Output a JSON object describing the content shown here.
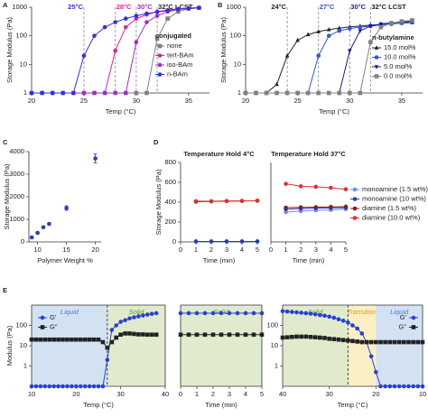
{
  "chart_data": [
    {
      "type": "line",
      "panel_label": "A",
      "log_y": true,
      "xlabel": "Temp (°C)",
      "ylabel": "Storage Modulus (Pa)",
      "xlim": [
        20,
        37
      ],
      "ylim": [
        1,
        1000
      ],
      "xticks": [
        20,
        25,
        30,
        35
      ],
      "yticks": [
        1,
        10,
        100,
        1000
      ],
      "legend": "right",
      "legend_title": "conjugated",
      "annotations": [
        {
          "x": 25,
          "label": "25°C",
          "color": "#3030e0"
        },
        {
          "x": 28,
          "label": "28°C",
          "color": "#e0209a"
        },
        {
          "x": 30,
          "label": "30°C",
          "color": "#9b2fc9"
        },
        {
          "x": 32,
          "label": "32°C LCST",
          "color": "#222222"
        }
      ],
      "x": [
        20,
        21,
        22,
        23,
        24,
        25,
        26,
        27,
        28,
        29,
        30,
        31,
        32,
        33,
        34,
        35,
        36
      ],
      "series": [
        {
          "name": "none",
          "color": "#808080",
          "marker": "square",
          "values": [
            1,
            1,
            1,
            1,
            1,
            1,
            1,
            1,
            1,
            1,
            1,
            1,
            80,
            400,
            700,
            900,
            950
          ]
        },
        {
          "name": "tert-BAm",
          "color": "#e0209a",
          "marker": "circle",
          "values": [
            1,
            1,
            1,
            1,
            1,
            1,
            1,
            1,
            30,
            200,
            400,
            550,
            700,
            800,
            880,
            930,
            960
          ]
        },
        {
          "name": "iso-BAm",
          "color": "#9b2fc9",
          "marker": "circle",
          "values": [
            1,
            1,
            1,
            1,
            1,
            1,
            1,
            1,
            1,
            1,
            60,
            300,
            500,
            700,
            830,
            920,
            960
          ]
        },
        {
          "name": "n-BAm",
          "color": "#3030e0",
          "marker": "circle",
          "values": [
            1,
            1,
            1,
            1,
            1,
            20,
            100,
            200,
            300,
            400,
            500,
            600,
            680,
            760,
            840,
            900,
            950
          ]
        }
      ]
    },
    {
      "type": "line",
      "panel_label": "B",
      "log_y": true,
      "xlabel": "Temp (°C)",
      "ylabel": "Storage Modulus (Pa)",
      "xlim": [
        20,
        37
      ],
      "ylim": [
        1,
        1000
      ],
      "xticks": [
        20,
        25,
        30,
        35
      ],
      "yticks": [
        1,
        10,
        100,
        1000
      ],
      "legend": "right",
      "legend_title": "n-butylamine",
      "annotations": [
        {
          "x": 24,
          "label": "24°C",
          "color": "#222222"
        },
        {
          "x": 27,
          "label": "27°C",
          "color": "#2f55e0"
        },
        {
          "x": 30,
          "label": "30°C",
          "color": "#1a1a9a"
        },
        {
          "x": 32,
          "label": "32°C LCST",
          "color": "#222222"
        }
      ],
      "x": [
        20,
        21,
        22,
        23,
        24,
        25,
        26,
        27,
        28,
        29,
        30,
        31,
        32,
        33,
        34,
        35,
        36
      ],
      "series": [
        {
          "name": "15.0 mol%",
          "color": "#222222",
          "marker": "triangle-up",
          "values": [
            1,
            1,
            1,
            2,
            20,
            70,
            110,
            140,
            165,
            185,
            205,
            220,
            235,
            250,
            262,
            275,
            290
          ]
        },
        {
          "name": "10.0 mol%",
          "color": "#2f55e0",
          "marker": "circle",
          "values": [
            1,
            1,
            1,
            1,
            1,
            1,
            1,
            20,
            100,
            150,
            180,
            200,
            220,
            240,
            260,
            280,
            300
          ]
        },
        {
          "name": "5.0 mol%",
          "color": "#1a1a9a",
          "marker": "triangle-down",
          "values": [
            1,
            1,
            1,
            1,
            1,
            1,
            1,
            1,
            1,
            1,
            30,
            150,
            220,
            260,
            285,
            305,
            320
          ]
        },
        {
          "name": "0.0 mol%",
          "color": "#808080",
          "marker": "square",
          "values": [
            1,
            1,
            1,
            1,
            1,
            1,
            1,
            1,
            1,
            1,
            1,
            1,
            60,
            200,
            280,
            320,
            350
          ]
        }
      ]
    },
    {
      "type": "scatter",
      "panel_label": "C",
      "xlabel": "Polymer Weight %",
      "ylabel": "Storage Modulus (Pa)",
      "xlim": [
        8.5,
        21
      ],
      "ylim": [
        0,
        4000
      ],
      "xticks": [
        10,
        15,
        20
      ],
      "yticks": [
        0,
        1000,
        2000,
        3000,
        4000
      ],
      "x": [
        9,
        10,
        11,
        12,
        15,
        20
      ],
      "series": [
        {
          "color": "#2c3cbf",
          "marker": "circle",
          "values": [
            200,
            400,
            650,
            800,
            1500,
            3700
          ],
          "errors": [
            40,
            40,
            40,
            50,
            100,
            200
          ]
        }
      ]
    },
    {
      "type": "line",
      "panel_label": "D",
      "title": "Temperature Hold 4°C",
      "xlabel": "Time (min)",
      "ylabel": "Storage Modulus (Pa)",
      "xlim": [
        0,
        5
      ],
      "ylim": [
        0,
        800
      ],
      "xticks": [
        0,
        1,
        2,
        3,
        4,
        5
      ],
      "yticks": [
        0,
        200,
        400,
        600,
        800
      ],
      "x": [
        1,
        2,
        3,
        4,
        5
      ],
      "series": [
        {
          "color": "#6a8ef0",
          "marker": "circle",
          "values": [
            5,
            5,
            5,
            5,
            5
          ]
        },
        {
          "color": "#1f3fd0",
          "marker": "circle",
          "values": [
            5,
            5,
            5,
            5,
            5
          ]
        },
        {
          "color": "#8b1a1a",
          "marker": "circle",
          "values": [
            405,
            408,
            410,
            412,
            415
          ]
        },
        {
          "color": "#e03030",
          "marker": "circle",
          "values": [
            410,
            410,
            412,
            413,
            415
          ]
        }
      ]
    },
    {
      "type": "line",
      "title": "Temperature Hold 37°C",
      "xlabel": "Time (min)",
      "xlim": [
        0,
        5
      ],
      "ylim": [
        0,
        800
      ],
      "xticks": [
        0,
        1,
        2,
        3,
        4,
        5
      ],
      "legend": "outside right",
      "x": [
        1,
        2,
        3,
        4,
        5
      ],
      "series": [
        {
          "name": "monoamine (1.5 wt%)",
          "color": "#6a8ef0",
          "marker": "circle",
          "values": [
            300,
            310,
            318,
            322,
            330
          ]
        },
        {
          "name": "monoamine (10 wt%)",
          "color": "#1f3fd0",
          "marker": "circle",
          "values": [
            330,
            335,
            340,
            342,
            345
          ]
        },
        {
          "name": "diamine (1.5 wt%)",
          "color": "#8b1a1a",
          "marker": "circle",
          "values": [
            345,
            348,
            350,
            352,
            355
          ]
        },
        {
          "name": "diamine (10.0 wt%)",
          "color": "#e03030",
          "marker": "circle",
          "values": [
            585,
            560,
            555,
            545,
            530
          ]
        }
      ]
    },
    {
      "type": "line",
      "panel_label": "E",
      "log_y": true,
      "xlabel": "Temp (°C)",
      "ylabel": "Modulus (Pa)",
      "xlim": [
        10,
        40
      ],
      "ylim": [
        0.1,
        1000
      ],
      "xticks": [
        10,
        20,
        30,
        40
      ],
      "yticks": [
        1,
        10,
        100
      ],
      "legend": "upper left",
      "regions": [
        {
          "from": 10,
          "to": 27,
          "label": "Liquid",
          "color": "#d3e2f3",
          "text_color": "#4a7ac8"
        },
        {
          "from": 27,
          "to": 40,
          "label": "Solid",
          "color": "#e0ebcd",
          "text_color": "#5a9a2a"
        }
      ],
      "annotations": [
        {
          "x": 27,
          "color": "#222222"
        }
      ],
      "x": [
        10,
        11,
        12,
        13,
        14,
        15,
        16,
        17,
        18,
        19,
        20,
        21,
        22,
        23,
        24,
        25,
        26,
        27,
        28,
        29,
        30,
        31,
        32,
        33,
        34,
        35,
        36,
        37,
        38
      ],
      "series": [
        {
          "name": "G'",
          "color": "#2a3fd8",
          "marker": "circle",
          "values": [
            0.1,
            0.1,
            0.1,
            0.1,
            0.1,
            0.1,
            0.1,
            0.1,
            0.1,
            0.1,
            0.1,
            0.1,
            0.1,
            0.1,
            0.1,
            0.1,
            0.1,
            2,
            60,
            100,
            150,
            180,
            220,
            250,
            280,
            310,
            340,
            370,
            400
          ]
        },
        {
          "name": "G\"",
          "color": "#222222",
          "marker": "square",
          "values": [
            20,
            20,
            20,
            20,
            20,
            20,
            20,
            20,
            20,
            20,
            20,
            20,
            20,
            20,
            20,
            20,
            15,
            8,
            15,
            25,
            35,
            40,
            40,
            38,
            36,
            36,
            35,
            35,
            35
          ]
        }
      ]
    },
    {
      "type": "line",
      "log_y": true,
      "xlabel": "Time (min)",
      "xlim": [
        0,
        5
      ],
      "ylim": [
        0.1,
        1000
      ],
      "xticks": [
        0,
        1,
        2,
        3,
        4,
        5
      ],
      "regions": [
        {
          "from": 0,
          "to": 5,
          "label": "Solid",
          "color": "#e0ebcd",
          "text_color": "#5a9a2a"
        }
      ],
      "x": [
        0,
        0.5,
        1,
        1.5,
        2,
        2.5,
        3,
        3.5,
        4,
        4.5,
        5
      ],
      "series": [
        {
          "color": "#2a3fd8",
          "marker": "circle",
          "values": [
            400,
            400,
            400,
            400,
            400,
            400,
            400,
            400,
            400,
            400,
            400
          ]
        },
        {
          "color": "#222222",
          "marker": "square",
          "values": [
            35,
            35,
            35,
            35,
            35,
            35,
            35,
            35,
            35,
            35,
            35
          ]
        }
      ]
    },
    {
      "type": "line",
      "log_y": true,
      "xlabel": "Temp (°C)",
      "xlim": [
        40,
        10
      ],
      "ylim": [
        0.1,
        1000
      ],
      "xticks": [
        40,
        30,
        20,
        10
      ],
      "yticks": [
        1,
        10,
        100
      ],
      "legend": "upper right",
      "regions": [
        {
          "from": 40,
          "to": 26,
          "label": "Solid",
          "color": "#e0ebcd",
          "text_color": "#5a9a2a"
        },
        {
          "from": 26,
          "to": 20,
          "label": "Transition",
          "color": "#fbf0c4",
          "text_color": "#d89a20"
        },
        {
          "from": 20,
          "to": 10,
          "label": "Liquid",
          "color": "#d3e2f3",
          "text_color": "#4a7ac8"
        }
      ],
      "annotations": [
        {
          "x": 26,
          "color": "#222222"
        }
      ],
      "x": [
        40,
        39,
        38,
        37,
        36,
        35,
        34,
        33,
        32,
        31,
        30,
        29,
        28,
        27,
        26,
        25,
        24,
        23,
        22,
        21,
        20,
        19,
        18,
        17,
        16,
        15,
        14,
        13,
        12,
        11,
        10
      ],
      "series": [
        {
          "name": "G'",
          "color": "#2a3fd8",
          "marker": "circle",
          "values": [
            500,
            480,
            460,
            440,
            420,
            400,
            380,
            350,
            320,
            300,
            270,
            240,
            200,
            170,
            140,
            100,
            70,
            40,
            15,
            3,
            0.5,
            0.1,
            0.1,
            0.1,
            0.1,
            0.1,
            0.1,
            0.1,
            0.1,
            0.1,
            0.1
          ]
        },
        {
          "name": "G\"",
          "color": "#222222",
          "marker": "square",
          "values": [
            25,
            26,
            27,
            28,
            28,
            28,
            27,
            26,
            25,
            24,
            22,
            21,
            20,
            19,
            18,
            17,
            16,
            15,
            15,
            15,
            15,
            15,
            15,
            15,
            15,
            15,
            15,
            15,
            15,
            15,
            15
          ]
        }
      ]
    }
  ]
}
